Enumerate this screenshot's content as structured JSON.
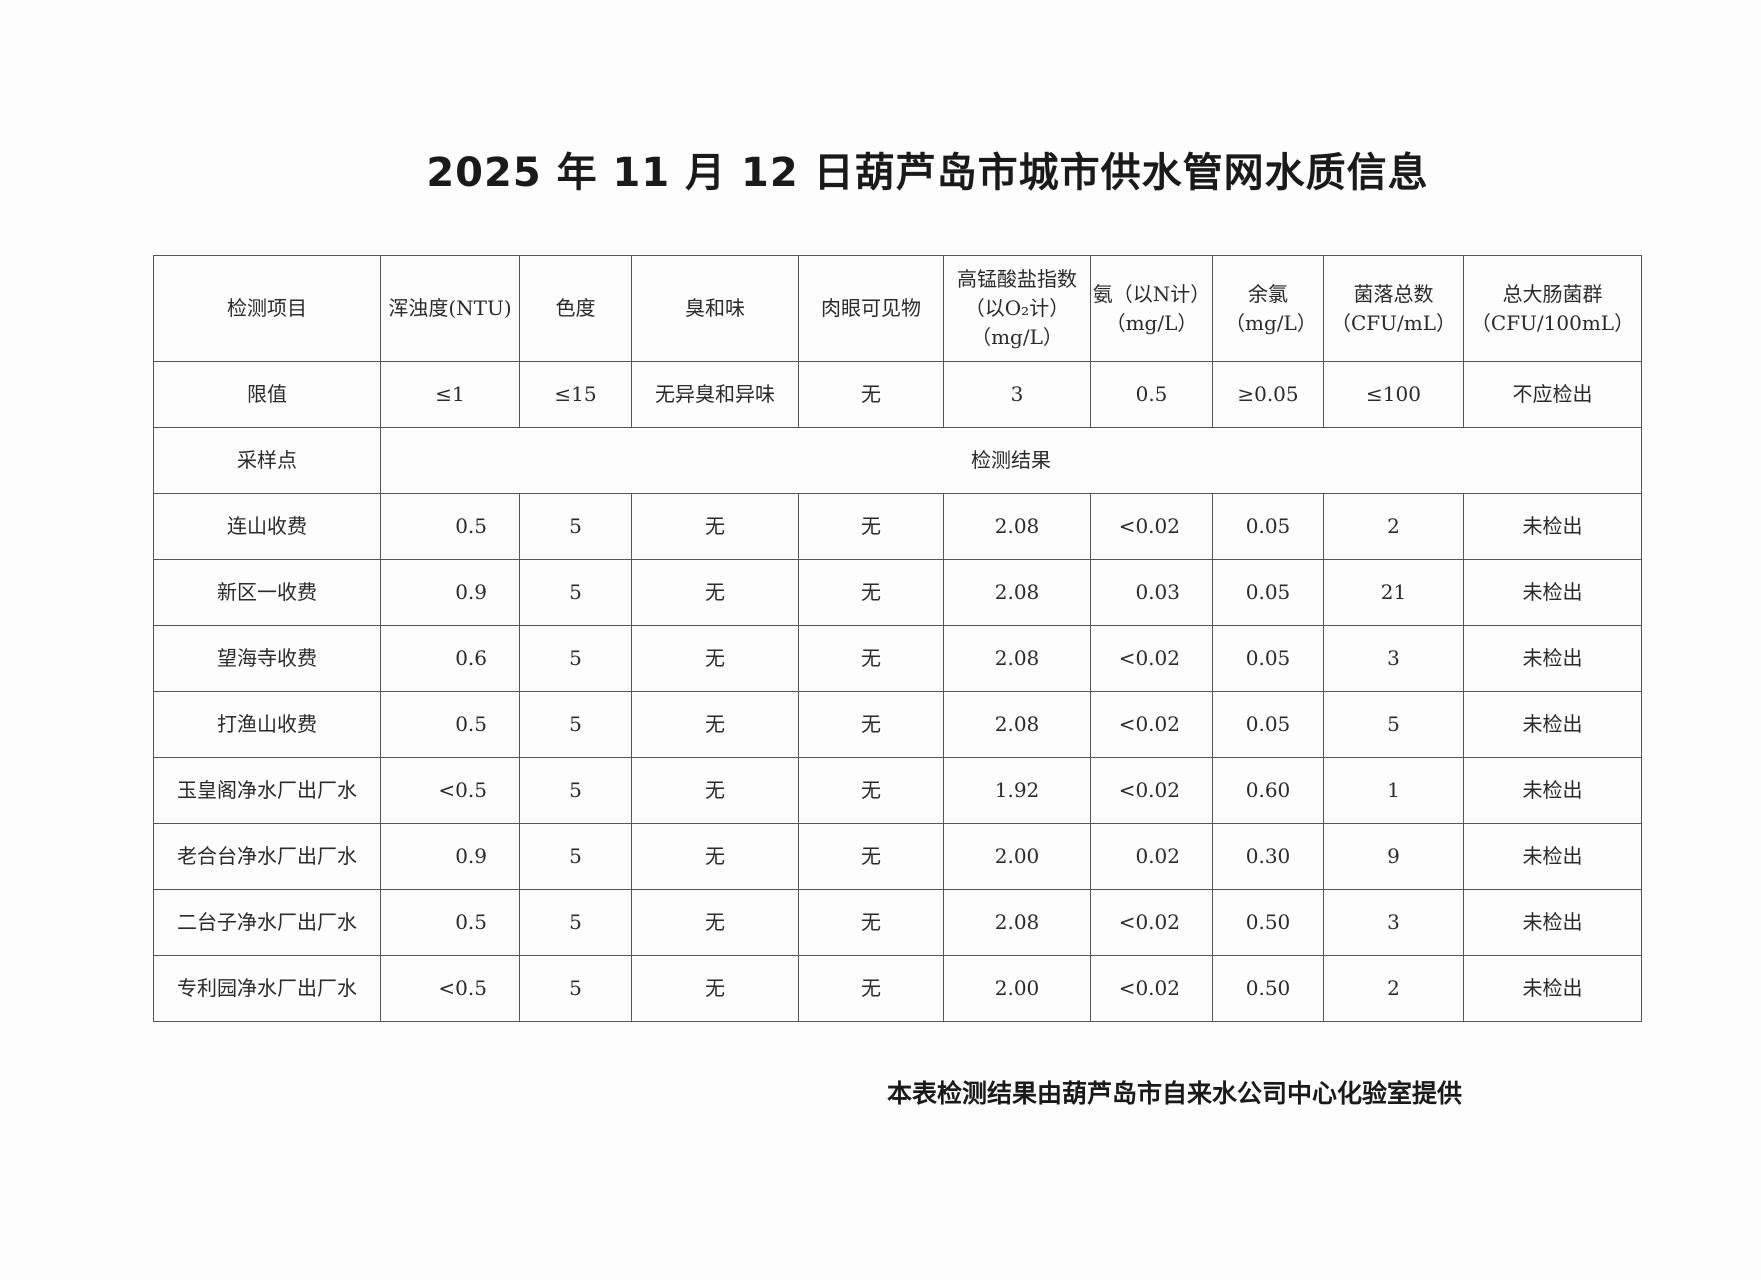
{
  "title": "2025 年 11 月 12 日葫芦岛市城市供水管网水质信息",
  "table": {
    "headers": [
      "检测项目",
      "浑浊度(NTU)",
      "色度",
      "臭和味",
      "肉眼可见物",
      "高锰酸盐指数（以O₂计）（mg/L）",
      "氨（以N计）（mg/L）",
      "余氯（mg/L）",
      "菌落总数（CFU/mL）",
      "总大肠菌群（CFU/100mL）"
    ],
    "header_lines": [
      [
        "检测项目"
      ],
      [
        "浑浊度(NTU)"
      ],
      [
        "色度"
      ],
      [
        "臭和味"
      ],
      [
        "肉眼可见物"
      ],
      [
        "高锰酸盐指数",
        "（以O₂计）",
        "（mg/L）"
      ],
      [
        "氨（以N计）",
        "（mg/L）"
      ],
      [
        "余氯",
        "（mg/L）"
      ],
      [
        "菌落总数",
        "（CFU/mL）"
      ],
      [
        "总大肠菌群",
        "（CFU/100mL）"
      ]
    ],
    "limits": [
      "限值",
      "≤1",
      "≤15",
      "无异臭和异味",
      "无",
      "3",
      "0.5",
      "≥0.05",
      "≤100",
      "不应检出"
    ],
    "section_label": "采样点",
    "section_title": "检测结果",
    "rows": [
      [
        "连山收费",
        "0.5",
        "5",
        "无",
        "无",
        "2.08",
        "<0.02",
        "0.05",
        "2",
        "未检出"
      ],
      [
        "新区一收费",
        "0.9",
        "5",
        "无",
        "无",
        "2.08",
        "0.03",
        "0.05",
        "21",
        "未检出"
      ],
      [
        "望海寺收费",
        "0.6",
        "5",
        "无",
        "无",
        "2.08",
        "<0.02",
        "0.05",
        "3",
        "未检出"
      ],
      [
        "打渔山收费",
        "0.5",
        "5",
        "无",
        "无",
        "2.08",
        "<0.02",
        "0.05",
        "5",
        "未检出"
      ],
      [
        "玉皇阁净水厂出厂水",
        "<0.5",
        "5",
        "无",
        "无",
        "1.92",
        "<0.02",
        "0.60",
        "1",
        "未检出"
      ],
      [
        "老合台净水厂出厂水",
        "0.9",
        "5",
        "无",
        "无",
        "2.00",
        "0.02",
        "0.30",
        "9",
        "未检出"
      ],
      [
        "二台子净水厂出厂水",
        "0.5",
        "5",
        "无",
        "无",
        "2.08",
        "<0.02",
        "0.50",
        "3",
        "未检出"
      ],
      [
        "专利园净水厂出厂水",
        "<0.5",
        "5",
        "无",
        "无",
        "2.00",
        "<0.02",
        "0.50",
        "2",
        "未检出"
      ]
    ]
  },
  "footer": "本表检测结果由葫芦岛市自来水公司中心化验室提供"
}
